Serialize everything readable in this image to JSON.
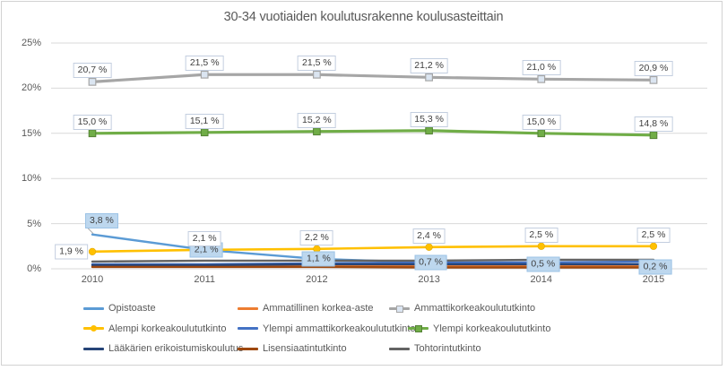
{
  "window": {
    "background": "#FFFFFF",
    "frame_border_color": "#D2D2D2"
  },
  "chart_data": {
    "type": "line",
    "title": "30-34 vuotiaiden koulutusrakenne koulusasteittain",
    "categories": [
      "2010",
      "2011",
      "2012",
      "2013",
      "2014",
      "2015"
    ],
    "y_ticks": [
      "0%",
      "5%",
      "10%",
      "15%",
      "20%",
      "25%"
    ],
    "ylim": [
      0,
      25
    ],
    "grid": true,
    "legend_position": "bottom",
    "axis_text_color": "#595959",
    "gridline_color": "#D9D9D9",
    "data_label_text_color": "#404040",
    "label_styles": {
      "white_bg": "#FFFFFF",
      "white_border": "#C3CEDF",
      "highlight_bg": "#BDD7EE",
      "highlight_border": "#9CC3E6"
    },
    "series": [
      {
        "name": "Opistoaste",
        "color": "#5B9BD5",
        "marker": "none",
        "line_width": 2.4,
        "values": [
          3.8,
          2.1,
          1.1,
          0.7,
          0.5,
          0.2
        ],
        "data_labels": [
          "3,8 %",
          "2,1 %",
          "1,1 %",
          "0,7 %",
          "0,5 %",
          "0,2 %"
        ],
        "label_style": "highlighted-blue"
      },
      {
        "name": "Ammatillinen korkea-aste",
        "color": "#ED7D31",
        "marker": "none",
        "line_width": 2.4,
        "values": [
          0.25,
          0.25,
          0.3,
          0.3,
          0.3,
          0.3
        ],
        "values_estimated": true
      },
      {
        "name": "Ammattikorkeakoulututkinto",
        "color": "#A6A6A6",
        "marker": "square-light",
        "line_width": 3.2,
        "values": [
          20.7,
          21.5,
          21.5,
          21.2,
          21.0,
          20.9
        ],
        "data_labels": [
          "20,7 %",
          "21,5 %",
          "21,5 %",
          "21,2 %",
          "21,0 %",
          "20,9 %"
        ],
        "label_style": "white"
      },
      {
        "name": "Alempi korkeakoulututkinto",
        "color": "#FFC000",
        "marker": "circle",
        "line_width": 2.6,
        "values": [
          1.9,
          2.1,
          2.2,
          2.4,
          2.5,
          2.5
        ],
        "data_labels": [
          "1,9 %",
          "2,1 %",
          "2,2 %",
          "2,4 %",
          "2,5 %",
          "2,5 %"
        ],
        "label_style": "white"
      },
      {
        "name": "Ylempi ammattikorkeakoulututkinto",
        "color": "#4472C4",
        "marker": "none",
        "line_width": 2.4,
        "values": [
          0.5,
          0.5,
          0.6,
          0.7,
          0.7,
          0.8
        ],
        "values_estimated": true
      },
      {
        "name": "Ylempi korkeakoulututkinto",
        "color": "#70AD47",
        "marker": "square",
        "line_width": 3.2,
        "values": [
          15.0,
          15.1,
          15.2,
          15.3,
          15.0,
          14.8
        ],
        "data_labels": [
          "15,0 %",
          "15,1 %",
          "15,2 %",
          "15,3 %",
          "15,0 %",
          "14,8 %"
        ],
        "label_style": "white"
      },
      {
        "name": "Lääkärien erikoistumiskoulutus",
        "color": "#264478",
        "marker": "none",
        "line_width": 2.4,
        "values": [
          0.4,
          0.4,
          0.5,
          0.5,
          0.5,
          0.5
        ],
        "values_estimated": true
      },
      {
        "name": "Lisensiaatintutkinto",
        "color": "#9E480E",
        "marker": "none",
        "line_width": 2.4,
        "values": [
          0.2,
          0.2,
          0.2,
          0.15,
          0.15,
          0.15
        ],
        "values_estimated": true
      },
      {
        "name": "Tohtorintutkinto",
        "color": "#636363",
        "marker": "none",
        "line_width": 2.4,
        "values": [
          0.8,
          0.9,
          0.9,
          0.9,
          1.0,
          1.0
        ],
        "values_estimated": true
      }
    ]
  }
}
